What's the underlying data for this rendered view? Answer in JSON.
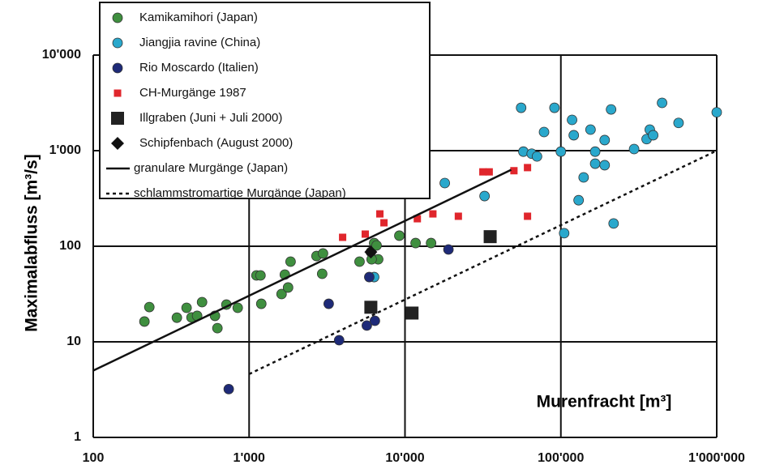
{
  "chart_data": {
    "type": "scatter",
    "xlabel": "Murenfracht [m³]",
    "ylabel": "Maximalabfluss [m³/s]",
    "log_x": true,
    "log_y": true,
    "grid": true,
    "xlim": [
      100,
      1000000
    ],
    "ylim": [
      1,
      10000
    ],
    "xticks": [
      100,
      {
        "value": 1000,
        "label": "1'000"
      },
      {
        "value": 10000,
        "label": "10'000"
      },
      {
        "value": 100000,
        "label": "100'000"
      },
      {
        "value": 1000000,
        "label": "1'000'000"
      }
    ],
    "yticks": [
      1,
      10,
      100,
      {
        "value": 1000,
        "label": "1'000"
      },
      {
        "value": 10000,
        "label": "10'000"
      }
    ],
    "series": [
      {
        "name": "Kamikamihori (Japan)",
        "color": "#3f8f3f",
        "marker": "circle",
        "x": [
          213,
          229,
          344,
          397,
          427,
          464,
          499,
          604,
          626,
          715,
          845,
          1114,
          1183,
          1197,
          1615,
          1695,
          1778,
          1845,
          2706,
          2979,
          2943,
          5109,
          6040,
          6340,
          6575,
          6730,
          6110,
          9200,
          11700,
          14700
        ],
        "values": [
          16.3,
          23.1,
          17.9,
          22.7,
          18,
          18.7,
          26,
          18.7,
          13.9,
          24.5,
          22.7,
          49.5,
          49.5,
          25,
          31.6,
          50.5,
          37,
          69,
          79,
          84,
          51.5,
          69,
          87,
          108,
          102,
          73,
          73,
          129,
          108,
          108
        ]
      },
      {
        "name": "Jiangjia ravine (China)",
        "color": "#2aa8cc",
        "marker": "circle",
        "x": [
          6340,
          18000,
          32400,
          55600,
          57500,
          65000,
          70300,
          78000,
          91000,
          100000,
          105000,
          118000,
          121000,
          130000,
          140000,
          155000,
          166000,
          166000,
          191000,
          191000,
          210000,
          218000,
          295000,
          355000,
          372000,
          391000,
          446000,
          569000,
          1000000
        ],
        "values": [
          47.6,
          458,
          335,
          2810,
          977,
          929,
          870,
          1567,
          2810,
          977,
          137,
          2100,
          1450,
          303,
          525,
          1660,
          977,
          731,
          1290,
          705,
          2700,
          173,
          1040,
          1320,
          1660,
          1450,
          3160,
          1950,
          2520
        ]
      },
      {
        "name": "Rio Moscardo (Italien)",
        "color": "#1e2a78",
        "marker": "circle",
        "x": [
          740,
          3240,
          3780,
          5690,
          5900,
          6410,
          19000
        ],
        "values": [
          3.2,
          25,
          10.4,
          14.8,
          47.6,
          16.6,
          92.5
        ]
      },
      {
        "name": "CH-Murgänge 1987",
        "color": "#e0262c",
        "marker": "square",
        "x": [
          3980,
          5560,
          6900,
          7330,
          12000,
          15100,
          22000,
          31600,
          34700,
          50000,
          61100,
          61100
        ],
        "values": [
          124,
          134,
          218,
          176,
          194,
          218,
          206,
          600,
          600,
          617,
          665,
          206
        ]
      },
      {
        "name": "Illgraben (Juni + Juli 2000)",
        "color": "#222222",
        "marker": "bigsquare",
        "x": [
          6040,
          11100,
          35200
        ],
        "values": [
          23,
          20,
          126
        ]
      },
      {
        "name": "Schipfenbach (August 2000)",
        "color": "#111111",
        "marker": "diamond",
        "x": [
          6040
        ],
        "values": [
          87
        ]
      },
      {
        "name": "granulare Murgänge (Japan)",
        "color": "#111111",
        "line_style": "solid",
        "x": [
          100,
          48000
        ],
        "values": [
          5,
          630
        ]
      },
      {
        "name": "schlammstromartige Murgänge (Japan)",
        "color": "#111111",
        "line_style": "dotted",
        "x": [
          1000,
          1000000
        ],
        "values": [
          4.6,
          1000
        ]
      }
    ]
  }
}
